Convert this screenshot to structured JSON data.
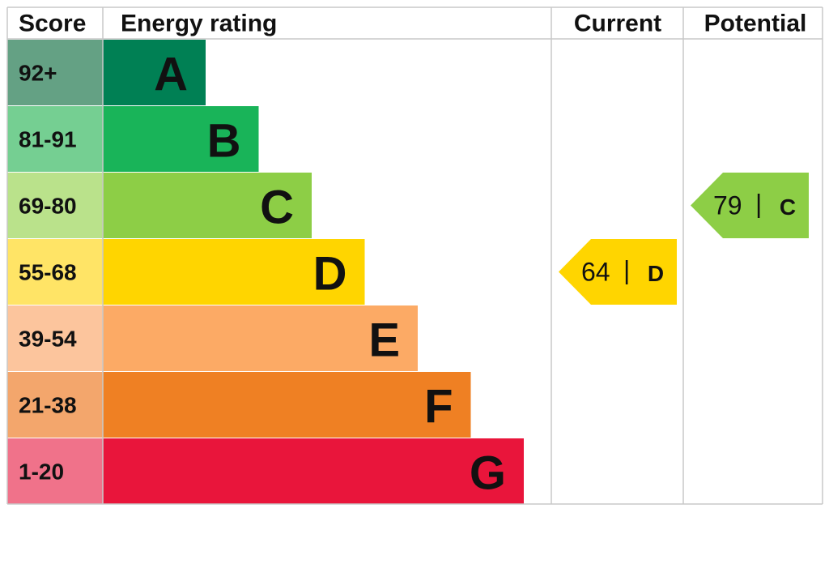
{
  "header": {
    "score": "Score",
    "rating": "Energy rating",
    "current": "Current",
    "potential": "Potential"
  },
  "bands": [
    {
      "score": "92+",
      "letter": "A",
      "color": "#008054",
      "score_color": "#64a184"
    },
    {
      "score": "81-91",
      "letter": "B",
      "color": "#19b459",
      "score_color": "#75cf92"
    },
    {
      "score": "69-80",
      "letter": "C",
      "color": "#8dce46",
      "score_color": "#bae28b"
    },
    {
      "score": "55-68",
      "letter": "D",
      "color": "#ffd500",
      "score_color": "#ffe466"
    },
    {
      "score": "39-54",
      "letter": "E",
      "color": "#fcaa65",
      "score_color": "#fcc59d"
    },
    {
      "score": "21-38",
      "letter": "F",
      "color": "#ef8023",
      "score_color": "#f3a66c"
    },
    {
      "score": "1-20",
      "letter": "G",
      "color": "#e9153b",
      "score_color": "#f0728a"
    }
  ],
  "current": {
    "score": 64,
    "separator": "|",
    "rating": "D"
  },
  "potential": {
    "score": 79,
    "separator": "|",
    "rating": "C"
  }
}
